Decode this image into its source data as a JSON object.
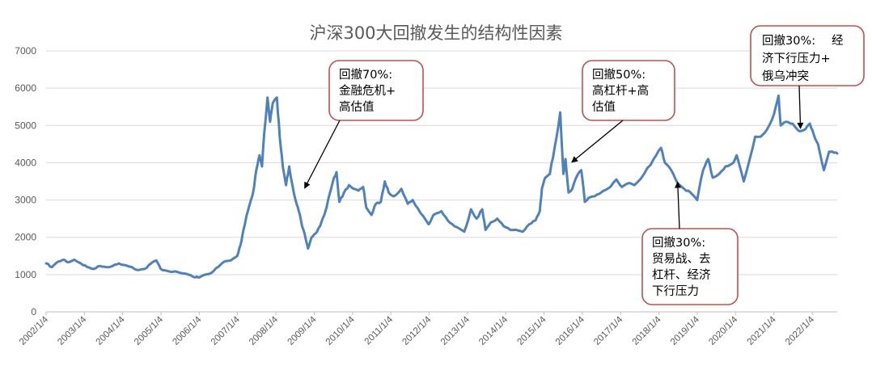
{
  "chart_data": {
    "type": "line",
    "title": "沪深300大回撤发生的结构性因素",
    "ylim": [
      0,
      7000
    ],
    "yticks": [
      0,
      1000,
      2000,
      3000,
      4000,
      5000,
      6000,
      7000
    ],
    "xlabels": [
      "2002/1/4",
      "2003/1/4",
      "2004/1/4",
      "2005/1/4",
      "2006/1/4",
      "2007/1/4",
      "2008/1/4",
      "2009/1/4",
      "2010/1/4",
      "2011/1/4",
      "2012/1/4",
      "2013/1/4",
      "2014/1/4",
      "2015/1/4",
      "2016/1/4",
      "2017/1/4",
      "2018/1/4",
      "2019/1/4",
      "2020/1/4",
      "2021/1/4",
      "2022/1/4"
    ],
    "xlim": [
      "2002-01-04",
      "2022-08-31"
    ],
    "grid": true,
    "series": [
      {
        "color": "#4f81bd",
        "points": [
          [
            "2002-01-04",
            1300
          ],
          [
            "2002-03-01",
            1200
          ],
          [
            "2002-05-01",
            1350
          ],
          [
            "2002-06-20",
            1400
          ],
          [
            "2002-08-01",
            1330
          ],
          [
            "2002-10-01",
            1400
          ],
          [
            "2002-12-01",
            1300
          ],
          [
            "2003-02-01",
            1200
          ],
          [
            "2003-04-01",
            1150
          ],
          [
            "2003-06-01",
            1230
          ],
          [
            "2003-08-01",
            1200
          ],
          [
            "2003-10-01",
            1230
          ],
          [
            "2003-12-01",
            1300
          ],
          [
            "2004-02-01",
            1250
          ],
          [
            "2004-04-01",
            1200
          ],
          [
            "2004-06-01",
            1120
          ],
          [
            "2004-08-01",
            1150
          ],
          [
            "2004-10-01",
            1300
          ],
          [
            "2004-11-20",
            1380
          ],
          [
            "2005-01-01",
            1150
          ],
          [
            "2005-03-01",
            1100
          ],
          [
            "2005-05-01",
            1080
          ],
          [
            "2005-07-01",
            1050
          ],
          [
            "2005-09-01",
            1020
          ],
          [
            "2005-11-01",
            950
          ],
          [
            "2006-01-01",
            920
          ],
          [
            "2006-03-01",
            1000
          ],
          [
            "2006-05-01",
            1050
          ],
          [
            "2006-07-01",
            1200
          ],
          [
            "2006-09-01",
            1350
          ],
          [
            "2006-11-01",
            1380
          ],
          [
            "2007-01-01",
            1500
          ],
          [
            "2007-02-01",
            1800
          ],
          [
            "2007-03-01",
            2200
          ],
          [
            "2007-04-01",
            2600
          ],
          [
            "2007-05-01",
            2900
          ],
          [
            "2007-06-01",
            3200
          ],
          [
            "2007-07-01",
            3800
          ],
          [
            "2007-08-01",
            4200
          ],
          [
            "2007-08-25",
            3900
          ],
          [
            "2007-09-15",
            4800
          ],
          [
            "2007-10-16",
            5750
          ],
          [
            "2007-11-10",
            5100
          ],
          [
            "2007-12-05",
            5600
          ],
          [
            "2008-01-14",
            5750
          ],
          [
            "2008-02-10",
            4700
          ],
          [
            "2008-03-10",
            3900
          ],
          [
            "2008-04-10",
            3400
          ],
          [
            "2008-05-10",
            3900
          ],
          [
            "2008-06-10",
            3400
          ],
          [
            "2008-07-10",
            3000
          ],
          [
            "2008-08-10",
            2700
          ],
          [
            "2008-09-10",
            2300
          ],
          [
            "2008-10-15",
            1950
          ],
          [
            "2008-11-05",
            1700
          ],
          [
            "2008-12-10",
            2000
          ],
          [
            "2009-01-15",
            2100
          ],
          [
            "2009-03-01",
            2300
          ],
          [
            "2009-05-01",
            2800
          ],
          [
            "2009-07-01",
            3500
          ],
          [
            "2009-08-04",
            3750
          ],
          [
            "2009-09-01",
            2950
          ],
          [
            "2009-10-15",
            3200
          ],
          [
            "2009-12-01",
            3400
          ],
          [
            "2010-01-15",
            3300
          ],
          [
            "2010-03-01",
            3250
          ],
          [
            "2010-04-15",
            3350
          ],
          [
            "2010-05-15",
            2800
          ],
          [
            "2010-07-05",
            2600
          ],
          [
            "2010-08-15",
            2900
          ],
          [
            "2010-10-01",
            2950
          ],
          [
            "2010-11-08",
            3500
          ],
          [
            "2010-12-15",
            3200
          ],
          [
            "2011-02-01",
            3100
          ],
          [
            "2011-04-15",
            3300
          ],
          [
            "2011-06-15",
            2900
          ],
          [
            "2011-08-01",
            3000
          ],
          [
            "2011-10-15",
            2650
          ],
          [
            "2011-12-31",
            2350
          ],
          [
            "2012-02-15",
            2600
          ],
          [
            "2012-05-01",
            2700
          ],
          [
            "2012-07-01",
            2450
          ],
          [
            "2012-09-01",
            2300
          ],
          [
            "2012-12-04",
            2150
          ],
          [
            "2013-02-06",
            2750
          ],
          [
            "2013-04-01",
            2500
          ],
          [
            "2013-05-25",
            2750
          ],
          [
            "2013-06-25",
            2200
          ],
          [
            "2013-08-15",
            2400
          ],
          [
            "2013-10-15",
            2500
          ],
          [
            "2013-12-15",
            2300
          ],
          [
            "2014-02-15",
            2200
          ],
          [
            "2014-04-15",
            2200
          ],
          [
            "2014-06-15",
            2150
          ],
          [
            "2014-08-15",
            2350
          ],
          [
            "2014-10-15",
            2450
          ],
          [
            "2014-11-25",
            2700
          ],
          [
            "2014-12-15",
            3300
          ],
          [
            "2015-01-15",
            3600
          ],
          [
            "2015-03-01",
            3700
          ],
          [
            "2015-04-15",
            4400
          ],
          [
            "2015-06-08",
            5350
          ],
          [
            "2015-07-08",
            3700
          ],
          [
            "2015-07-28",
            4100
          ],
          [
            "2015-08-26",
            3200
          ],
          [
            "2015-10-01",
            3300
          ],
          [
            "2015-11-15",
            3650
          ],
          [
            "2015-12-25",
            3800
          ],
          [
            "2016-01-28",
            2950
          ],
          [
            "2016-03-01",
            3050
          ],
          [
            "2016-05-01",
            3100
          ],
          [
            "2016-07-01",
            3200
          ],
          [
            "2016-09-01",
            3300
          ],
          [
            "2016-11-25",
            3550
          ],
          [
            "2017-01-15",
            3350
          ],
          [
            "2017-03-15",
            3450
          ],
          [
            "2017-05-15",
            3400
          ],
          [
            "2017-08-15",
            3700
          ],
          [
            "2017-11-15",
            4100
          ],
          [
            "2018-01-24",
            4400
          ],
          [
            "2018-03-01",
            4000
          ],
          [
            "2018-05-01",
            3800
          ],
          [
            "2018-07-01",
            3450
          ],
          [
            "2018-09-01",
            3300
          ],
          [
            "2018-11-01",
            3200
          ],
          [
            "2019-01-04",
            3000
          ],
          [
            "2019-03-01",
            3800
          ],
          [
            "2019-04-19",
            4100
          ],
          [
            "2019-06-01",
            3600
          ],
          [
            "2019-08-01",
            3700
          ],
          [
            "2019-10-01",
            3900
          ],
          [
            "2019-12-15",
            4000
          ],
          [
            "2020-01-15",
            4200
          ],
          [
            "2020-03-23",
            3500
          ],
          [
            "2020-05-01",
            3900
          ],
          [
            "2020-07-10",
            4700
          ],
          [
            "2020-09-01",
            4700
          ],
          [
            "2020-11-01",
            4900
          ],
          [
            "2021-01-05",
            5300
          ],
          [
            "2021-02-18",
            5800
          ],
          [
            "2021-03-10",
            5000
          ],
          [
            "2021-05-01",
            5100
          ],
          [
            "2021-07-01",
            5050
          ],
          [
            "2021-09-01",
            4850
          ],
          [
            "2021-11-01",
            4900
          ],
          [
            "2021-12-13",
            5050
          ],
          [
            "2022-01-20",
            4750
          ],
          [
            "2022-03-01",
            4500
          ],
          [
            "2022-04-26",
            3800
          ],
          [
            "2022-06-15",
            4300
          ],
          [
            "2022-07-15",
            4300
          ],
          [
            "2022-08-31",
            4250
          ]
        ]
      }
    ],
    "annotations": [
      {
        "id": "a1",
        "lines": [
          "回撤70%:",
          "金融危机+",
          "高估值"
        ],
        "target": [
          "2008-10-01",
          3300
        ]
      },
      {
        "id": "a2",
        "lines": [
          "回撤50%:",
          "高杠杆+高",
          "估值"
        ],
        "target": [
          "2015-09-20",
          4000
        ]
      },
      {
        "id": "a3",
        "lines": [
          "回撤30%:",
          "贸易战、去",
          "杠杆、经济",
          "下行压力"
        ],
        "target": [
          "2018-07-01",
          3500
        ]
      },
      {
        "id": "a4",
        "lines": [
          "回撤30%:",
          "经",
          "济下行压力+",
          "俄乌冲突"
        ],
        "target": [
          "2021-09-15",
          4900
        ]
      }
    ]
  }
}
